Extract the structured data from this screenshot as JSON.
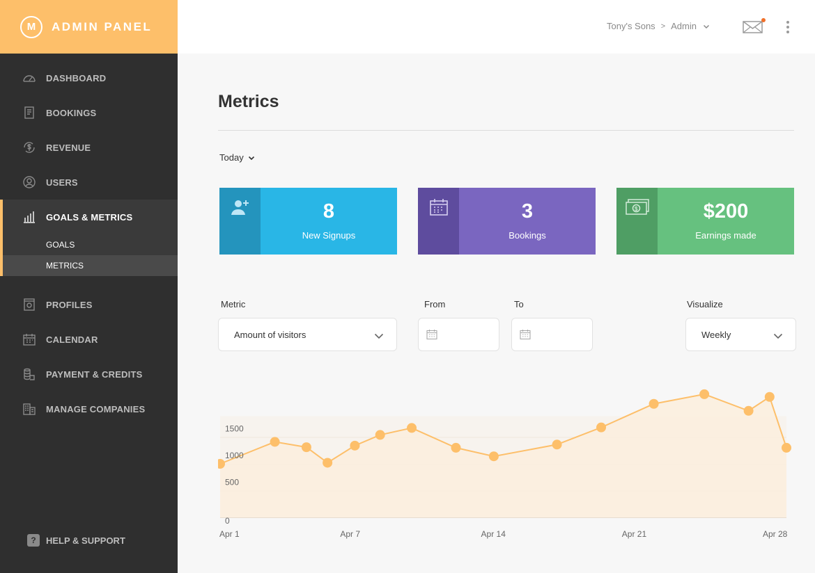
{
  "brand": {
    "logo_letter": "M",
    "title": "ADMIN PANEL",
    "color": "#fdbf6a"
  },
  "sidebar": {
    "items_top": [
      {
        "label": "DASHBOARD",
        "icon": "speedometer-icon"
      },
      {
        "label": "BOOKINGS",
        "icon": "receipt-icon"
      },
      {
        "label": "REVENUE",
        "icon": "dollar-refresh-icon"
      },
      {
        "label": "USERS",
        "icon": "user-circle-icon"
      }
    ],
    "active_group": {
      "label": "GOALS & METRICS",
      "icon": "bar-chart-icon",
      "subitems": [
        {
          "label": "GOALS"
        },
        {
          "label": "METRICS",
          "active": true
        }
      ]
    },
    "items_bottom": [
      {
        "label": "PROFILES",
        "icon": "profile-card-icon"
      },
      {
        "label": "CALENDAR",
        "icon": "calendar-icon"
      },
      {
        "label": "PAYMENT & CREDITS",
        "icon": "coins-icon"
      },
      {
        "label": "MANAGE COMPANIES",
        "icon": "buildings-icon"
      }
    ],
    "help": {
      "label": "HELP & SUPPORT",
      "icon_glyph": "?"
    }
  },
  "header": {
    "breadcrumb": {
      "company": "Tony's Sons",
      "separator": ">",
      "role": "Admin"
    },
    "notifications": {
      "has_unread": true,
      "dot_color": "#f0702a"
    }
  },
  "page": {
    "title": "Metrics",
    "range_label": "Today"
  },
  "cards": [
    {
      "value": "8",
      "label": "New Signups",
      "icon": "add-user-icon",
      "color": "#29b6e6",
      "side_color": "#2494bd"
    },
    {
      "value": "3",
      "label": "Bookings",
      "icon": "calendar-icon",
      "color": "#7a66c0",
      "side_color": "#5e4c9e"
    },
    {
      "value": "$200",
      "label": "Earnings made",
      "icon": "cash-icon",
      "color": "#66c17f",
      "side_color": "#4f9e64"
    }
  ],
  "filters": {
    "metric": {
      "label": "Metric",
      "value": "Amount of visitors"
    },
    "from": {
      "label": "From",
      "value": ""
    },
    "to": {
      "label": "To",
      "value": ""
    },
    "visualize": {
      "label": "Visualize",
      "value": "Weekly"
    }
  },
  "chart_data": {
    "type": "area",
    "color": "#fdbf6a",
    "fill": "#fbeede",
    "yticks": [
      0,
      500,
      1000,
      1500
    ],
    "xtick_labels": [
      "Apr 1",
      "Apr 7",
      "Apr 14",
      "Apr 21",
      "Apr 28"
    ],
    "xtick_days": [
      1,
      7,
      14,
      21,
      28
    ],
    "x": [
      1,
      3.6,
      5.1,
      6.1,
      7.4,
      8.6,
      10.1,
      12.2,
      14,
      17,
      19.1,
      21.6,
      24,
      26.1,
      27.1,
      27.9
    ],
    "y": [
      1000,
      1410,
      1310,
      1020,
      1340,
      1540,
      1670,
      1300,
      1140,
      1360,
      1680,
      2120,
      2300,
      1990,
      2250,
      1300
    ],
    "xlim": [
      1,
      27.9
    ]
  }
}
